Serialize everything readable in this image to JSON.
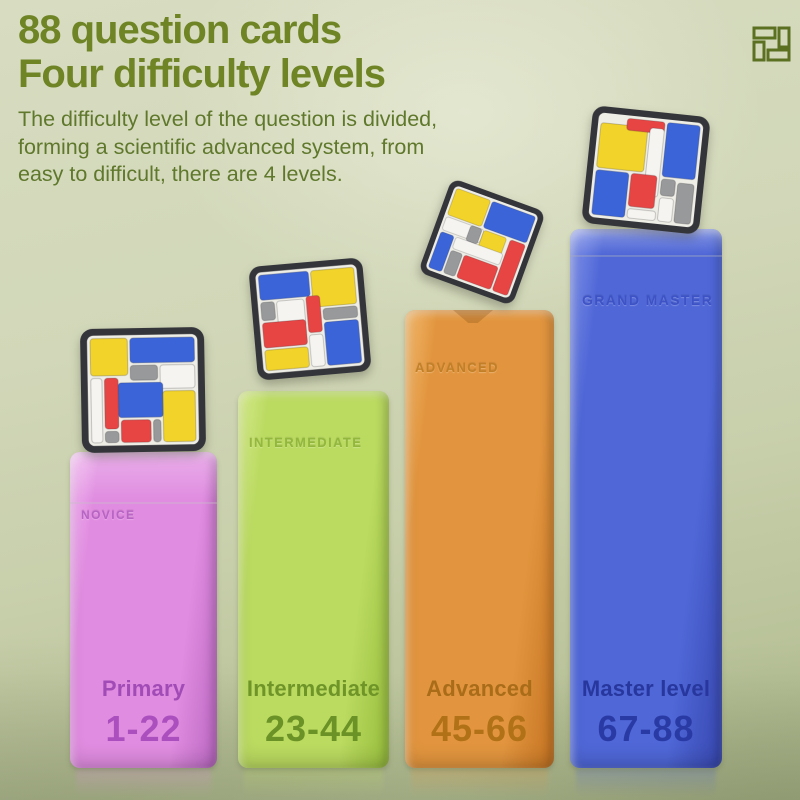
{
  "header": {
    "title_line1": "88 question cards",
    "title_line2": "Four difficulty levels",
    "desc_lines": [
      "The difficulty level of the question is divided,",
      "forming a scientific advanced system, from",
      "easy to difficult, there are 4 levels."
    ]
  },
  "logo": {
    "icon": "pinwheel-bricks-logo",
    "color": "#5c7022"
  },
  "colors": {
    "title": "#6e8425",
    "body_text": "#5f782c",
    "puzzle_frame": "#34353a",
    "puzzle_board": "#eeede6",
    "palette": {
      "B": "#3b64d8",
      "Y": "#f2d32a",
      "R": "#e74444",
      "W": "#f5f4f1",
      "G": "#98999b"
    }
  },
  "levels": [
    {
      "embossed": "NOVICE",
      "name": "Primary",
      "range": "1-22",
      "colors": {
        "front": "#e08ce0",
        "light": "#f3b9f1",
        "dark": "#bf6cc6",
        "name": "#a14cb6",
        "range": "#ab4fbe",
        "emboss": "#b05cc0"
      },
      "cube": {
        "blocks": [
          [
            8,
            8,
            30,
            30,
            "Y"
          ],
          [
            40,
            8,
            52,
            20,
            "B"
          ],
          [
            40,
            30,
            22,
            12,
            "G"
          ],
          [
            64,
            30,
            28,
            19,
            "W"
          ],
          [
            30,
            44,
            36,
            28,
            "B"
          ],
          [
            66,
            51,
            26,
            41,
            "Y"
          ],
          [
            8,
            40,
            9,
            52,
            "W"
          ],
          [
            19,
            40,
            11,
            41,
            "R"
          ],
          [
            19,
            83,
            11,
            9,
            "G"
          ],
          [
            32,
            74,
            24,
            18,
            "R"
          ],
          [
            58,
            74,
            6,
            18,
            "G"
          ]
        ]
      }
    },
    {
      "embossed": "INTERMEDIATE",
      "name": "Intermediate",
      "range": "23-44",
      "colors": {
        "front": "#bada60",
        "light": "#d8ec90",
        "dark": "#9bc140",
        "name": "#6f9529",
        "range": "#6b9226",
        "emboss": "#8cb236"
      },
      "cube": {
        "blocks": [
          [
            8,
            8,
            44,
            22,
            "B"
          ],
          [
            54,
            8,
            38,
            32,
            "Y"
          ],
          [
            8,
            32,
            12,
            16,
            "G"
          ],
          [
            22,
            32,
            24,
            24,
            "W"
          ],
          [
            48,
            30,
            12,
            32,
            "R"
          ],
          [
            62,
            42,
            30,
            10,
            "G"
          ],
          [
            62,
            54,
            30,
            38,
            "B"
          ],
          [
            8,
            50,
            38,
            22,
            "R"
          ],
          [
            8,
            74,
            38,
            18,
            "Y"
          ],
          [
            48,
            64,
            12,
            28,
            "W"
          ]
        ]
      }
    },
    {
      "embossed": "ADVANCED",
      "name": "Advanced",
      "range": "45-66",
      "colors": {
        "front": "#e2953e",
        "light": "#f3bb70",
        "dark": "#c97825",
        "name": "#a96c19",
        "range": "#b07117",
        "emboss": "#bd7c22"
      },
      "cube": {
        "blocks": [
          [
            8,
            8,
            36,
            28,
            "Y"
          ],
          [
            46,
            8,
            46,
            28,
            "B"
          ],
          [
            8,
            38,
            40,
            14,
            "W"
          ],
          [
            34,
            38,
            12,
            16,
            "G"
          ],
          [
            48,
            38,
            24,
            22,
            "Y"
          ],
          [
            76,
            38,
            16,
            54,
            "R"
          ],
          [
            24,
            54,
            50,
            12,
            "W"
          ],
          [
            8,
            54,
            14,
            38,
            "B"
          ],
          [
            24,
            68,
            12,
            24,
            "G"
          ],
          [
            38,
            68,
            36,
            24,
            "R"
          ]
        ]
      }
    },
    {
      "embossed": "GRAND MASTER",
      "name": "Master level",
      "range": "67-88",
      "colors": {
        "front": "#4f67d7",
        "light": "#8495ea",
        "dark": "#3a4bb4",
        "name": "#27379d",
        "range": "#2a3aa4",
        "emboss": "#3b4fc4"
      },
      "cube": {
        "blocks": [
          [
            8,
            14,
            40,
            38,
            "Y"
          ],
          [
            30,
            8,
            32,
            10,
            "R"
          ],
          [
            64,
            8,
            28,
            46,
            "B"
          ],
          [
            50,
            14,
            12,
            58,
            "W"
          ],
          [
            8,
            54,
            28,
            38,
            "B"
          ],
          [
            38,
            54,
            22,
            28,
            "R"
          ],
          [
            64,
            56,
            12,
            14,
            "G"
          ],
          [
            78,
            58,
            14,
            34,
            "G"
          ],
          [
            38,
            84,
            24,
            8,
            "W"
          ],
          [
            64,
            72,
            12,
            20,
            "W"
          ]
        ]
      }
    }
  ]
}
